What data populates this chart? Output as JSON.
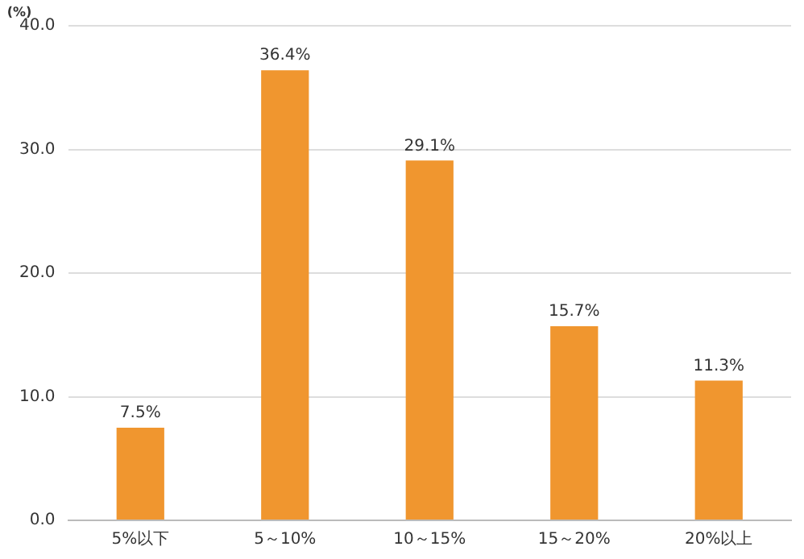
{
  "chart_data": {
    "type": "bar",
    "ylabel": "(%)",
    "categories": [
      "5%以下",
      "5～10%",
      "10～15%",
      "15～20%",
      "20%以上"
    ],
    "values": [
      7.5,
      36.4,
      29.1,
      15.7,
      11.3
    ],
    "value_labels": [
      "7.5%",
      "36.4%",
      "29.1%",
      "15.7%",
      "11.3%"
    ],
    "color": "#f0962f",
    "ylim": [
      0,
      40
    ],
    "yticks": [
      {
        "value": 0,
        "label": "0.0"
      },
      {
        "value": 10,
        "label": "10.0"
      },
      {
        "value": 20,
        "label": "20.0"
      },
      {
        "value": 30,
        "label": "30.0"
      },
      {
        "value": 40,
        "label": "40.0"
      }
    ],
    "grid": "y",
    "legend": false
  }
}
